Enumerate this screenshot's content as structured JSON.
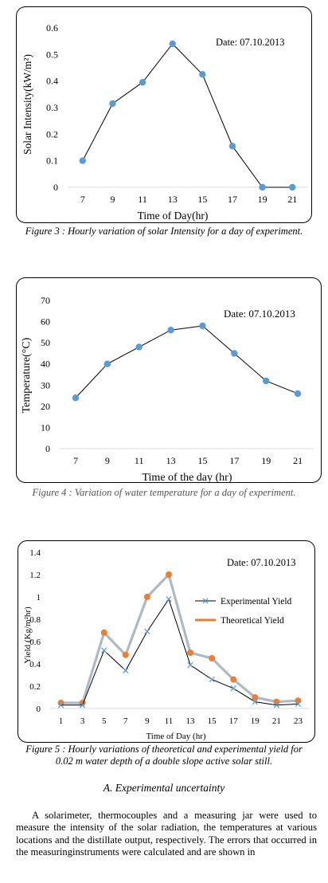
{
  "chart_data": [
    {
      "type": "line",
      "title": "Date: 07.10.2013",
      "xlabel": "Time of Day(hr)",
      "ylabel": "Solar Intensity(kW/m²)",
      "x": [
        7,
        9,
        11,
        13,
        15,
        17,
        19,
        21
      ],
      "series": [
        {
          "values": [
            0.1,
            0.315,
            0.395,
            0.54,
            0.425,
            0.155,
            0.0,
            0.0
          ],
          "color": "#5b9bd5"
        }
      ],
      "yticks": [
        "0",
        "0.1",
        "0.2",
        "0.3",
        "0.4",
        "0.5",
        "0.6"
      ],
      "ylim": [
        0,
        0.6
      ],
      "grid": false
    },
    {
      "type": "line",
      "title": "Date: 07.10.2013",
      "xlabel": "Time of the day (hr)",
      "ylabel": "Temperature(°C)",
      "x": [
        7,
        9,
        11,
        13,
        15,
        17,
        19,
        21
      ],
      "series": [
        {
          "values": [
            24,
            40,
            48,
            56,
            58,
            45,
            32,
            26
          ],
          "color": "#5b9bd5"
        }
      ],
      "yticks": [
        "0",
        "10",
        "20",
        "30",
        "40",
        "50",
        "60",
        "70"
      ],
      "ylim": [
        0,
        70
      ],
      "grid": false
    },
    {
      "type": "line",
      "title": "Date: 07.10.2013",
      "xlabel": "Time of Day (hr)",
      "ylabel": "Yield (Kg/m²hr)",
      "x": [
        1,
        3,
        5,
        7,
        9,
        11,
        13,
        15,
        17,
        19,
        21,
        23
      ],
      "series": [
        {
          "name": "Experimental Yield",
          "values": [
            0.03,
            0.03,
            0.52,
            0.34,
            0.69,
            0.98,
            0.39,
            0.26,
            0.18,
            0.06,
            0.03,
            0.04
          ],
          "color": "#5b9bd5"
        },
        {
          "name": "Theoretical Yield",
          "values": [
            0.05,
            0.05,
            0.68,
            0.48,
            1.0,
            1.2,
            0.5,
            0.45,
            0.26,
            0.1,
            0.06,
            0.07
          ],
          "color": "#ed7d31"
        }
      ],
      "yticks": [
        "0",
        "0.2",
        "0.4",
        "0.6",
        "0.8",
        "1",
        "1.2",
        "1.4"
      ],
      "ylim": [
        0,
        1.4
      ],
      "legend": "right",
      "grid": false
    }
  ],
  "captions": {
    "fig3": "Figure 3 : Hourly variation of solar Intensity for a day of experiment.",
    "fig4": "Figure 4 : Variation of water temperature for a day of experiment.",
    "fig5": "Figure 5 : Hourly variations of theoretical and experimental yield for 0.02 m water depth of a double slope active solar still."
  },
  "section_heading": "A. Experimental uncertainty",
  "paragraph": "A solarimeter, thermocouples and a measuring jar were used to measure the intensity of the solar radiation, the temperatures at various locations and the distillate output, respectively. The errors that occurred in the measuringinstruments were calculated and are shown in"
}
